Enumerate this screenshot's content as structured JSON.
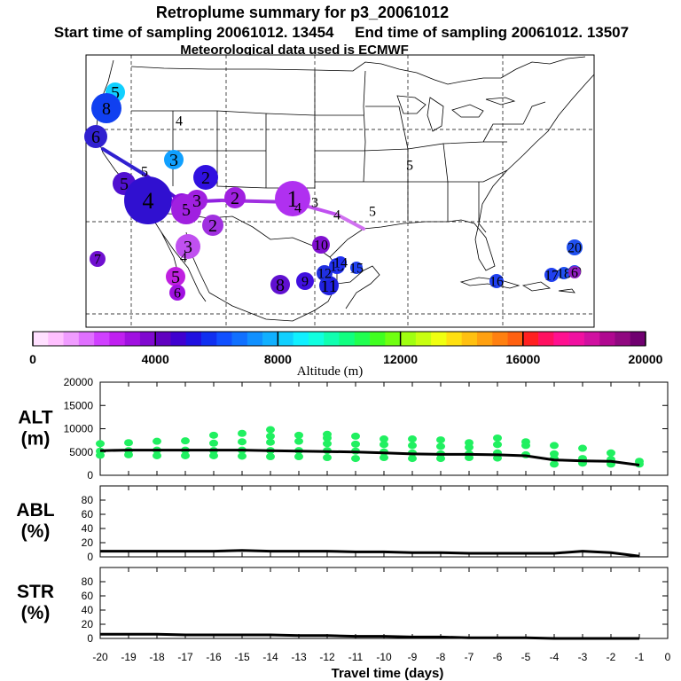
{
  "title": {
    "line1": "Retroplume summary for p3_20061012",
    "line2": "Start time of sampling 20061012. 13454     End time of sampling 20061012. 13507",
    "line3": "Meteorological data used is ECMWF"
  },
  "colorbar": {
    "label": "Altitude (m)",
    "tick_labels": [
      "0",
      "4000",
      "8000",
      "12000",
      "16000",
      "20000"
    ],
    "range": [
      0,
      20000
    ],
    "colors": [
      "#ffe0ff",
      "#ffc0ff",
      "#f09cff",
      "#e070ff",
      "#d040ff",
      "#c020f0",
      "#a010e0",
      "#8008d0",
      "#6000c0",
      "#4000d0",
      "#2010e0",
      "#1030f0",
      "#1050ff",
      "#1070ff",
      "#1090ff",
      "#10b0ff",
      "#10d0ff",
      "#10f0ff",
      "#10ffe0",
      "#10ffb0",
      "#10ff80",
      "#20ff50",
      "#40ff20",
      "#70ff10",
      "#a0ff10",
      "#c8ff10",
      "#f0ff10",
      "#ffe010",
      "#ffc010",
      "#ffa010",
      "#ff8010",
      "#ff6010",
      "#ff2020",
      "#ff1060",
      "#ff1090",
      "#f010a0",
      "#d010a0",
      "#b00890",
      "#900880",
      "#700070"
    ]
  },
  "map": {
    "plume_labels": [
      {
        "text": "5",
        "color": "#10d0ff"
      },
      {
        "text": "8",
        "color": "#1040f0"
      },
      {
        "text": "6",
        "color": "#3020d0"
      },
      {
        "text": "4",
        "color": "#1050ff"
      },
      {
        "text": "3",
        "color": "#10a0ff"
      },
      {
        "text": "2",
        "color": "#3010e0"
      },
      {
        "text": "5",
        "color": "#4020d0"
      },
      {
        "text": "5",
        "color": "#5010d0"
      },
      {
        "text": "4",
        "color": "#3010d0"
      },
      {
        "text": "4",
        "color": "#9010e0"
      },
      {
        "text": "5",
        "color": "#a020e0"
      },
      {
        "text": "3",
        "color": "#a020e0"
      },
      {
        "text": "2",
        "color": "#a020e0"
      },
      {
        "text": "1",
        "color": "#b030f0"
      },
      {
        "text": "4",
        "color": "#b030f0"
      },
      {
        "text": "3",
        "color": "#b030f0"
      },
      {
        "text": "4",
        "color": "#c050f0"
      },
      {
        "text": "5",
        "color": "#d060f0"
      },
      {
        "text": "2",
        "color": "#a030e0"
      },
      {
        "text": "3",
        "color": "#c050f0"
      },
      {
        "text": "4",
        "color": "#c050f0"
      },
      {
        "text": "5",
        "color": "#c020e0"
      },
      {
        "text": "6",
        "color": "#a010e0"
      },
      {
        "text": "7",
        "color": "#7010d0"
      },
      {
        "text": "8",
        "color": "#6010d0"
      },
      {
        "text": "9",
        "color": "#4010e0"
      },
      {
        "text": "10",
        "color": "#8010d0"
      },
      {
        "text": "11",
        "color": "#2020e0"
      },
      {
        "text": "12",
        "color": "#2030e0"
      },
      {
        "text": "13",
        "color": "#2030f0"
      },
      {
        "text": "14",
        "color": "#2030f0"
      },
      {
        "text": "15",
        "color": "#2040f0"
      },
      {
        "text": "16",
        "color": "#2040f0"
      },
      {
        "text": "17",
        "color": "#2040f0"
      },
      {
        "text": "18",
        "color": "#2050f0"
      },
      {
        "text": "19",
        "color": "#2050f0"
      },
      {
        "text": "20",
        "color": "#2050f0"
      },
      {
        "text": "6",
        "color": "#9020c0"
      },
      {
        "text": "5",
        "color": "#000000"
      }
    ]
  },
  "chart_data": [
    {
      "type": "line",
      "panel": "ALT",
      "ylabel": "ALT\n(m)",
      "ylabel_lines": [
        "ALT",
        "(m)"
      ],
      "xlim": [
        -20,
        0
      ],
      "ylim": [
        0,
        20000
      ],
      "yticks": [
        0,
        5000,
        10000,
        15000,
        20000
      ],
      "ytick_labels": [
        "0",
        "5000",
        "10000",
        "15000",
        "20000"
      ],
      "x": [
        -20,
        -19,
        -18,
        -17,
        -16,
        -15,
        -14,
        -13,
        -12,
        -11,
        -10,
        -9,
        -8,
        -7,
        -6,
        -5,
        -4,
        -3,
        -2,
        -1
      ],
      "series": [
        {
          "name": "mean altitude",
          "color": "#000000",
          "values": [
            5300,
            5400,
            5400,
            5400,
            5400,
            5400,
            5300,
            5200,
            5100,
            5000,
            4800,
            4600,
            4500,
            4500,
            4400,
            4200,
            3300,
            3100,
            3000,
            2200
          ]
        },
        {
          "name": "cluster altitudes",
          "color": "#20f060",
          "points": [
            [
              -20,
              6800
            ],
            [
              -20,
              5200
            ],
            [
              -20,
              4300
            ],
            [
              -19,
              7000
            ],
            [
              -19,
              5300
            ],
            [
              -19,
              4400
            ],
            [
              -18,
              7300
            ],
            [
              -18,
              5400
            ],
            [
              -18,
              4200
            ],
            [
              -17,
              7400
            ],
            [
              -17,
              5400
            ],
            [
              -17,
              4200
            ],
            [
              -16,
              8600
            ],
            [
              -16,
              6900
            ],
            [
              -16,
              5300
            ],
            [
              -16,
              4200
            ],
            [
              -15,
              9000
            ],
            [
              -15,
              7200
            ],
            [
              -15,
              5400
            ],
            [
              -15,
              4100
            ],
            [
              -14,
              9800
            ],
            [
              -14,
              8400
            ],
            [
              -14,
              7100
            ],
            [
              -14,
              5300
            ],
            [
              -14,
              4000
            ],
            [
              -13,
              8600
            ],
            [
              -13,
              7300
            ],
            [
              -13,
              5300
            ],
            [
              -13,
              4000
            ],
            [
              -12,
              8800
            ],
            [
              -12,
              8000
            ],
            [
              -12,
              6800
            ],
            [
              -12,
              5300
            ],
            [
              -12,
              3800
            ],
            [
              -11,
              8400
            ],
            [
              -11,
              6700
            ],
            [
              -11,
              5200
            ],
            [
              -11,
              3600
            ],
            [
              -10,
              7800
            ],
            [
              -10,
              6600
            ],
            [
              -10,
              5000
            ],
            [
              -10,
              3800
            ],
            [
              -9,
              7800
            ],
            [
              -9,
              6400
            ],
            [
              -9,
              4800
            ],
            [
              -9,
              3600
            ],
            [
              -8,
              7600
            ],
            [
              -8,
              6200
            ],
            [
              -8,
              4600
            ],
            [
              -8,
              3600
            ],
            [
              -7,
              7000
            ],
            [
              -7,
              6000
            ],
            [
              -7,
              4600
            ],
            [
              -7,
              3800
            ],
            [
              -6,
              8000
            ],
            [
              -6,
              6600
            ],
            [
              -6,
              4800
            ],
            [
              -6,
              3700
            ],
            [
              -5,
              7200
            ],
            [
              -5,
              6400
            ],
            [
              -5,
              4400
            ],
            [
              -4,
              6400
            ],
            [
              -4,
              4600
            ],
            [
              -4,
              3600
            ],
            [
              -4,
              2400
            ],
            [
              -3,
              5800
            ],
            [
              -3,
              3600
            ],
            [
              -3,
              2600
            ],
            [
              -2,
              4800
            ],
            [
              -2,
              3400
            ],
            [
              -2,
              2400
            ],
            [
              -1,
              3000
            ],
            [
              -1,
              2400
            ]
          ]
        }
      ]
    },
    {
      "type": "line",
      "panel": "ABL",
      "ylabel": "ABL\n(%)",
      "ylabel_lines": [
        "ABL",
        "(%)"
      ],
      "xlim": [
        -20,
        0
      ],
      "ylim": [
        0,
        100
      ],
      "yticks": [
        0,
        20,
        40,
        60,
        80
      ],
      "ytick_labels": [
        "0",
        "20",
        "40",
        "60",
        "80"
      ],
      "x": [
        -20,
        -19,
        -18,
        -17,
        -16,
        -15,
        -14,
        -13,
        -12,
        -11,
        -10,
        -9,
        -8,
        -7,
        -6,
        -5,
        -4,
        -3,
        -2,
        -1
      ],
      "series": [
        {
          "name": "ABL fraction",
          "color": "#000000",
          "values": [
            8,
            8,
            8,
            8,
            8,
            9,
            8,
            8,
            8,
            7,
            7,
            6,
            6,
            5,
            5,
            5,
            5,
            8,
            6,
            1
          ]
        }
      ]
    },
    {
      "type": "line",
      "panel": "STR",
      "ylabel": "STR\n(%)",
      "ylabel_lines": [
        "STR",
        "(%)"
      ],
      "xlim": [
        -20,
        0
      ],
      "ylim": [
        0,
        100
      ],
      "yticks": [
        0,
        20,
        40,
        60,
        80
      ],
      "ytick_labels": [
        "0",
        "20",
        "40",
        "60",
        "80"
      ],
      "x": [
        -20,
        -19,
        -18,
        -17,
        -16,
        -15,
        -14,
        -13,
        -12,
        -11,
        -10,
        -9,
        -8,
        -7,
        -6,
        -5,
        -4,
        -3,
        -2,
        -1
      ],
      "series": [
        {
          "name": "STR fraction",
          "color": "#000000",
          "values": [
            6,
            6,
            6,
            5,
            5,
            5,
            5,
            4,
            4,
            3,
            3,
            2,
            2,
            1,
            1,
            1,
            0,
            0,
            0,
            0
          ]
        }
      ]
    }
  ],
  "xaxis": {
    "label": "Travel time (days)",
    "ticks": [
      -20,
      -19,
      -18,
      -17,
      -16,
      -15,
      -14,
      -13,
      -12,
      -11,
      -10,
      -9,
      -8,
      -7,
      -6,
      -5,
      -4,
      -3,
      -2,
      -1,
      0
    ],
    "tick_labels": [
      "-20",
      "-19",
      "-18",
      "-17",
      "-16",
      "-15",
      "-14",
      "-13",
      "-12",
      "-11",
      "-10",
      "-9",
      "-8",
      "-7",
      "-6",
      "-5",
      "-4",
      "-3",
      "-2",
      "-1",
      "0"
    ]
  }
}
